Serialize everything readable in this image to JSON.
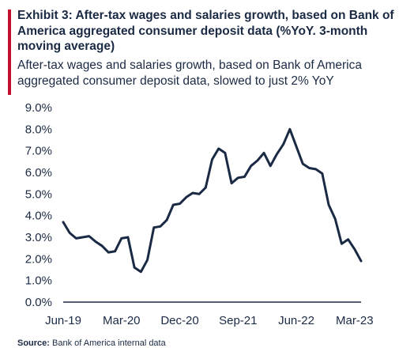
{
  "header": {
    "title": "Exhibit 3: After-tax wages and salaries growth, based on Bank of America aggregated consumer deposit data (%YoY. 3-month moving average)",
    "subtitle": "After-tax wages and salaries growth, based on Bank of America aggregated consumer deposit data, slowed to just 2% YoY"
  },
  "source": {
    "label": "Source:",
    "text": "Bank of America internal data"
  },
  "colors": {
    "accent": "#c0102e",
    "line": "#1b2a44",
    "text": "#1b2a44"
  },
  "chart_data": {
    "type": "line",
    "title": "",
    "xlabel": "",
    "ylabel": "",
    "ylim": [
      0,
      9
    ],
    "grid": false,
    "y_ticks": [
      "0.0%",
      "1.0%",
      "2.0%",
      "3.0%",
      "4.0%",
      "5.0%",
      "6.0%",
      "7.0%",
      "8.0%",
      "9.0%"
    ],
    "x_tick_labels": [
      "Jun-19",
      "Mar-20",
      "Dec-20",
      "Sep-21",
      "Jun-22",
      "Mar-23"
    ],
    "x": [
      "Jun-19",
      "Jul-19",
      "Aug-19",
      "Sep-19",
      "Oct-19",
      "Nov-19",
      "Dec-19",
      "Jan-20",
      "Feb-20",
      "Mar-20",
      "Apr-20",
      "May-20",
      "Jun-20",
      "Jul-20",
      "Aug-20",
      "Sep-20",
      "Oct-20",
      "Nov-20",
      "Dec-20",
      "Jan-21",
      "Feb-21",
      "Mar-21",
      "Apr-21",
      "May-21",
      "Jun-21",
      "Jul-21",
      "Aug-21",
      "Sep-21",
      "Oct-21",
      "Nov-21",
      "Dec-21",
      "Jan-22",
      "Feb-22",
      "Mar-22",
      "Apr-22",
      "May-22",
      "Jun-22",
      "Jul-22",
      "Aug-22",
      "Sep-22",
      "Oct-22",
      "Nov-22",
      "Dec-22",
      "Jan-23",
      "Feb-23",
      "Mar-23",
      "Apr-23"
    ],
    "series": [
      {
        "values": [
          3.7,
          3.2,
          2.95,
          3.0,
          3.05,
          2.8,
          2.6,
          2.3,
          2.35,
          2.95,
          3.0,
          1.6,
          1.4,
          1.95,
          3.45,
          3.5,
          3.8,
          4.5,
          4.55,
          4.85,
          5.05,
          5.0,
          5.3,
          6.6,
          7.1,
          6.9,
          5.5,
          5.75,
          5.8,
          6.3,
          6.55,
          6.9,
          6.3,
          6.85,
          7.3,
          8.0,
          7.2,
          6.4,
          6.2,
          6.15,
          5.95,
          4.5,
          3.85,
          2.7,
          2.9,
          2.45,
          1.9
        ]
      }
    ]
  }
}
